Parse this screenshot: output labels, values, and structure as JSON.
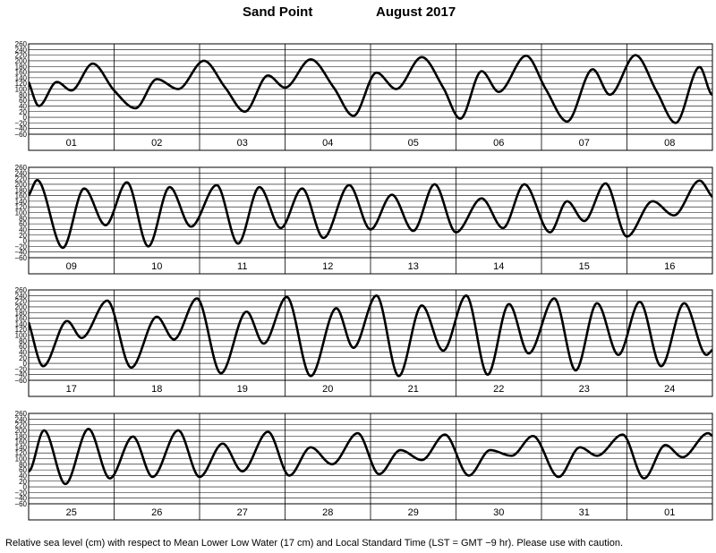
{
  "header": {
    "station": "Sand Point",
    "month_year": "August   2017"
  },
  "footer": {
    "caption": "Relative sea level (cm) with respect to Mean Lower Low Water (17 cm) and Local Standard Time (LST = GMT −9 hr). Please use with caution."
  },
  "chart_data": {
    "type": "line",
    "xlabel": "",
    "ylabel": "",
    "units": "cm",
    "ylim": [
      -60,
      260
    ],
    "yticks": [
      260,
      240,
      220,
      200,
      180,
      160,
      140,
      120,
      100,
      80,
      60,
      40,
      20,
      0,
      -20,
      -40,
      -60
    ],
    "grid": true,
    "panels": [
      {
        "days": [
          "01",
          "02",
          "03",
          "04",
          "05",
          "06",
          "07",
          "08"
        ],
        "extrema": [
          [
            0,
            125
          ],
          [
            0.12,
            40
          ],
          [
            0.33,
            125
          ],
          [
            0.5,
            95
          ],
          [
            0.75,
            190
          ],
          [
            1.0,
            95
          ],
          [
            1.25,
            32
          ],
          [
            1.5,
            135
          ],
          [
            1.75,
            100
          ],
          [
            2.05,
            200
          ],
          [
            2.3,
            105
          ],
          [
            2.53,
            20
          ],
          [
            2.8,
            148
          ],
          [
            3.0,
            105
          ],
          [
            3.3,
            205
          ],
          [
            3.57,
            105
          ],
          [
            3.8,
            5
          ],
          [
            4.07,
            158
          ],
          [
            4.3,
            100
          ],
          [
            4.6,
            213
          ],
          [
            4.85,
            105
          ],
          [
            5.05,
            -5
          ],
          [
            5.3,
            163
          ],
          [
            5.5,
            90
          ],
          [
            5.82,
            218
          ],
          [
            6.05,
            100
          ],
          [
            6.3,
            -15
          ],
          [
            6.6,
            170
          ],
          [
            6.8,
            80
          ],
          [
            7.1,
            220
          ],
          [
            7.35,
            90
          ],
          [
            7.57,
            -20
          ],
          [
            7.85,
            178
          ],
          [
            8.0,
            80
          ],
          [
            8.35,
            222
          ],
          [
            8.6,
            85
          ],
          [
            8.85,
            -25
          ],
          [
            9.1,
            180
          ],
          [
            9.25,
            70
          ],
          [
            9.5,
            140
          ]
        ]
      },
      {
        "days": [
          "09",
          "10",
          "11",
          "12",
          "13",
          "14",
          "15",
          "16"
        ],
        "extrema": [
          [
            -0.2,
            100
          ],
          [
            0,
            160
          ],
          [
            0.1,
            215
          ],
          [
            0.4,
            -25
          ],
          [
            0.65,
            185
          ],
          [
            0.9,
            55
          ],
          [
            1.15,
            207
          ],
          [
            1.4,
            -20
          ],
          [
            1.65,
            190
          ],
          [
            1.9,
            50
          ],
          [
            2.2,
            197
          ],
          [
            2.45,
            -10
          ],
          [
            2.7,
            190
          ],
          [
            2.95,
            45
          ],
          [
            3.2,
            185
          ],
          [
            3.45,
            10
          ],
          [
            3.75,
            197
          ],
          [
            4.0,
            40
          ],
          [
            4.25,
            163
          ],
          [
            4.5,
            35
          ],
          [
            4.75,
            200
          ],
          [
            5.0,
            30
          ],
          [
            5.3,
            150
          ],
          [
            5.55,
            45
          ],
          [
            5.8,
            200
          ],
          [
            6.1,
            30
          ],
          [
            6.3,
            140
          ],
          [
            6.5,
            70
          ],
          [
            6.75,
            203
          ],
          [
            7.0,
            15
          ],
          [
            7.3,
            140
          ],
          [
            7.55,
            90
          ],
          [
            7.85,
            213
          ],
          [
            8.0,
            155
          ],
          [
            8.3,
            100
          ]
        ]
      },
      {
        "days": [
          "17",
          "18",
          "19",
          "20",
          "21",
          "22",
          "23",
          "24"
        ],
        "extrema": [
          [
            0,
            145
          ],
          [
            0.17,
            -10
          ],
          [
            0.45,
            150
          ],
          [
            0.62,
            90
          ],
          [
            0.92,
            222
          ],
          [
            1.2,
            -15
          ],
          [
            1.5,
            165
          ],
          [
            1.7,
            85
          ],
          [
            1.97,
            230
          ],
          [
            2.25,
            -35
          ],
          [
            2.55,
            183
          ],
          [
            2.75,
            70
          ],
          [
            3.02,
            235
          ],
          [
            3.3,
            -45
          ],
          [
            3.6,
            195
          ],
          [
            3.8,
            55
          ],
          [
            4.07,
            240
          ],
          [
            4.33,
            -45
          ],
          [
            4.6,
            205
          ],
          [
            4.85,
            45
          ],
          [
            5.12,
            240
          ],
          [
            5.37,
            -40
          ],
          [
            5.62,
            210
          ],
          [
            5.85,
            35
          ],
          [
            6.15,
            230
          ],
          [
            6.4,
            -25
          ],
          [
            6.65,
            213
          ],
          [
            6.9,
            30
          ],
          [
            7.15,
            218
          ],
          [
            7.4,
            -10
          ],
          [
            7.67,
            213
          ],
          [
            7.93,
            30
          ],
          [
            8.0,
            48
          ],
          [
            8.3,
            100
          ]
        ]
      },
      {
        "days": [
          "25",
          "26",
          "27",
          "28",
          "29",
          "30",
          "31",
          "01"
        ],
        "extrema": [
          [
            -0.2,
            120
          ],
          [
            0,
            55
          ],
          [
            0.18,
            200
          ],
          [
            0.43,
            10
          ],
          [
            0.7,
            205
          ],
          [
            0.95,
            30
          ],
          [
            1.22,
            178
          ],
          [
            1.45,
            35
          ],
          [
            1.75,
            200
          ],
          [
            2.0,
            35
          ],
          [
            2.27,
            153
          ],
          [
            2.5,
            55
          ],
          [
            2.8,
            195
          ],
          [
            3.05,
            40
          ],
          [
            3.3,
            140
          ],
          [
            3.55,
            80
          ],
          [
            3.85,
            190
          ],
          [
            4.1,
            45
          ],
          [
            4.35,
            130
          ],
          [
            4.6,
            95
          ],
          [
            4.87,
            185
          ],
          [
            5.15,
            40
          ],
          [
            5.4,
            130
          ],
          [
            5.65,
            110
          ],
          [
            5.9,
            180
          ],
          [
            6.2,
            35
          ],
          [
            6.45,
            140
          ],
          [
            6.65,
            110
          ],
          [
            6.95,
            185
          ],
          [
            7.2,
            30
          ],
          [
            7.45,
            148
          ],
          [
            7.65,
            105
          ],
          [
            7.95,
            190
          ],
          [
            8.0,
            180
          ],
          [
            8.3,
            120
          ]
        ]
      }
    ]
  }
}
